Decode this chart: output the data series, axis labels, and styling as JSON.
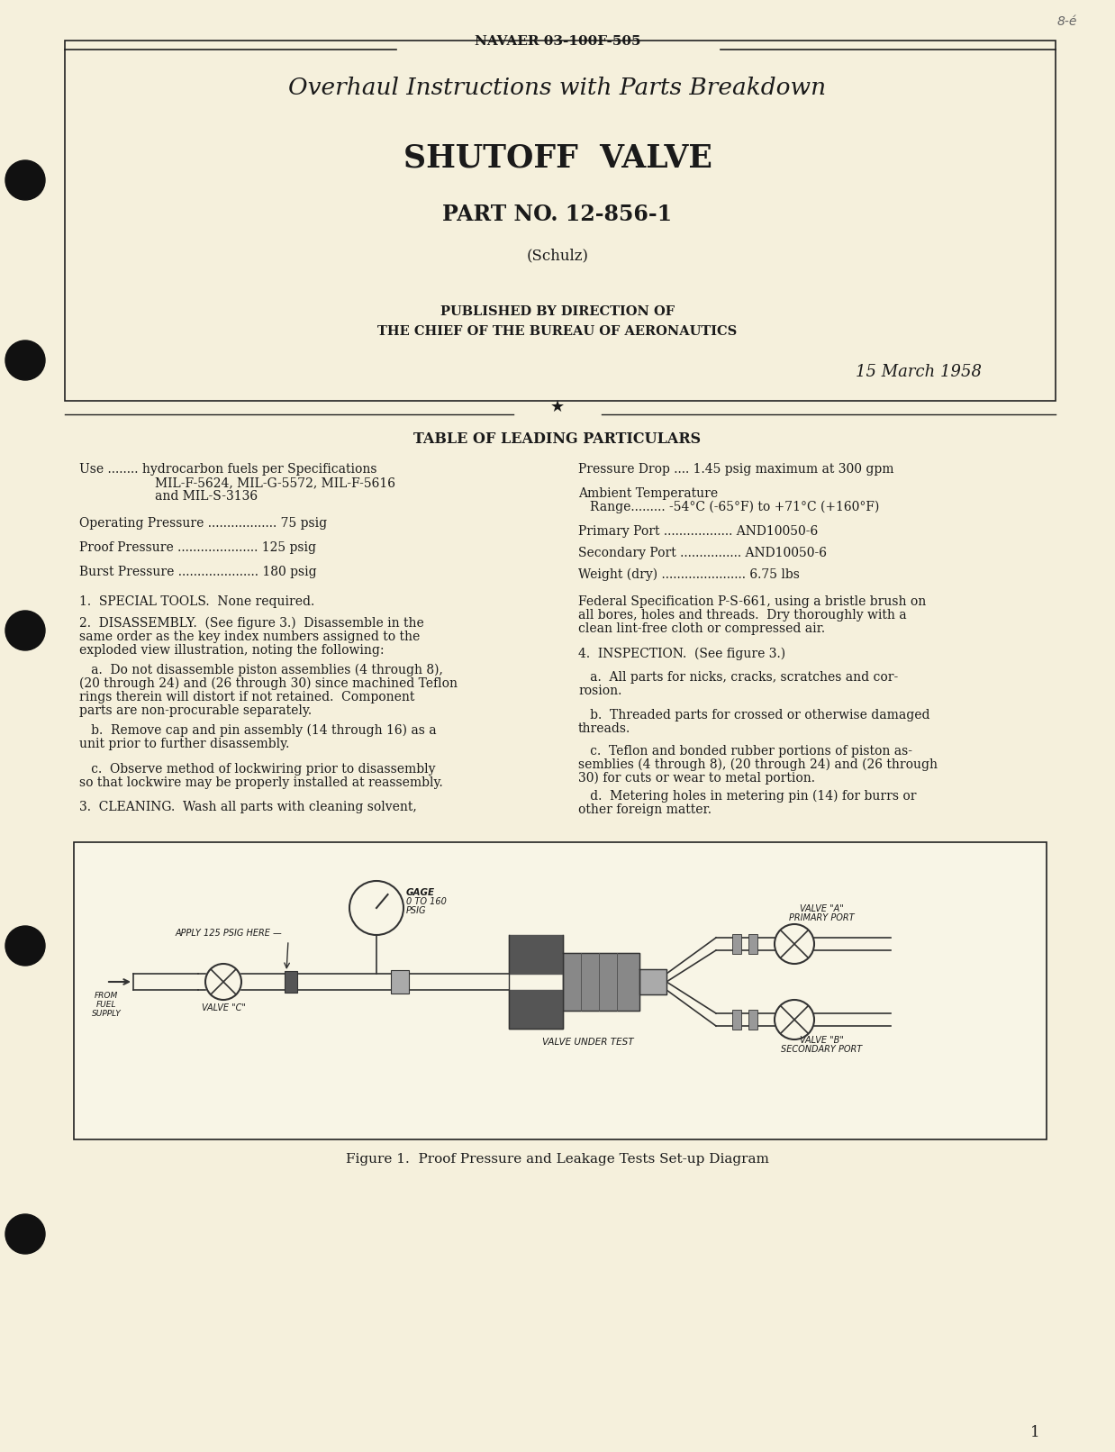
{
  "page_bg": "#f5f0dc",
  "text_color": "#1a1a1a",
  "header_text": "NAVAER 03-100F-505",
  "title1": "Overhaul Instructions with Parts Breakdown",
  "title2": "SHUTOFF  VALVE",
  "title3": "PART NO. 12-856-1",
  "title4": "(Schulz)",
  "pub_line1": "PUBLISHED BY DIRECTION OF",
  "pub_line2": "THE CHIEF OF THE BUREAU OF AERONAUTICS",
  "date": "15 March 1958",
  "table_title": "TABLE OF LEADING PARTICULARS",
  "fig_caption": "Figure 1.  Proof Pressure and Leakage Tests Set-up Diagram",
  "page_num": "1"
}
